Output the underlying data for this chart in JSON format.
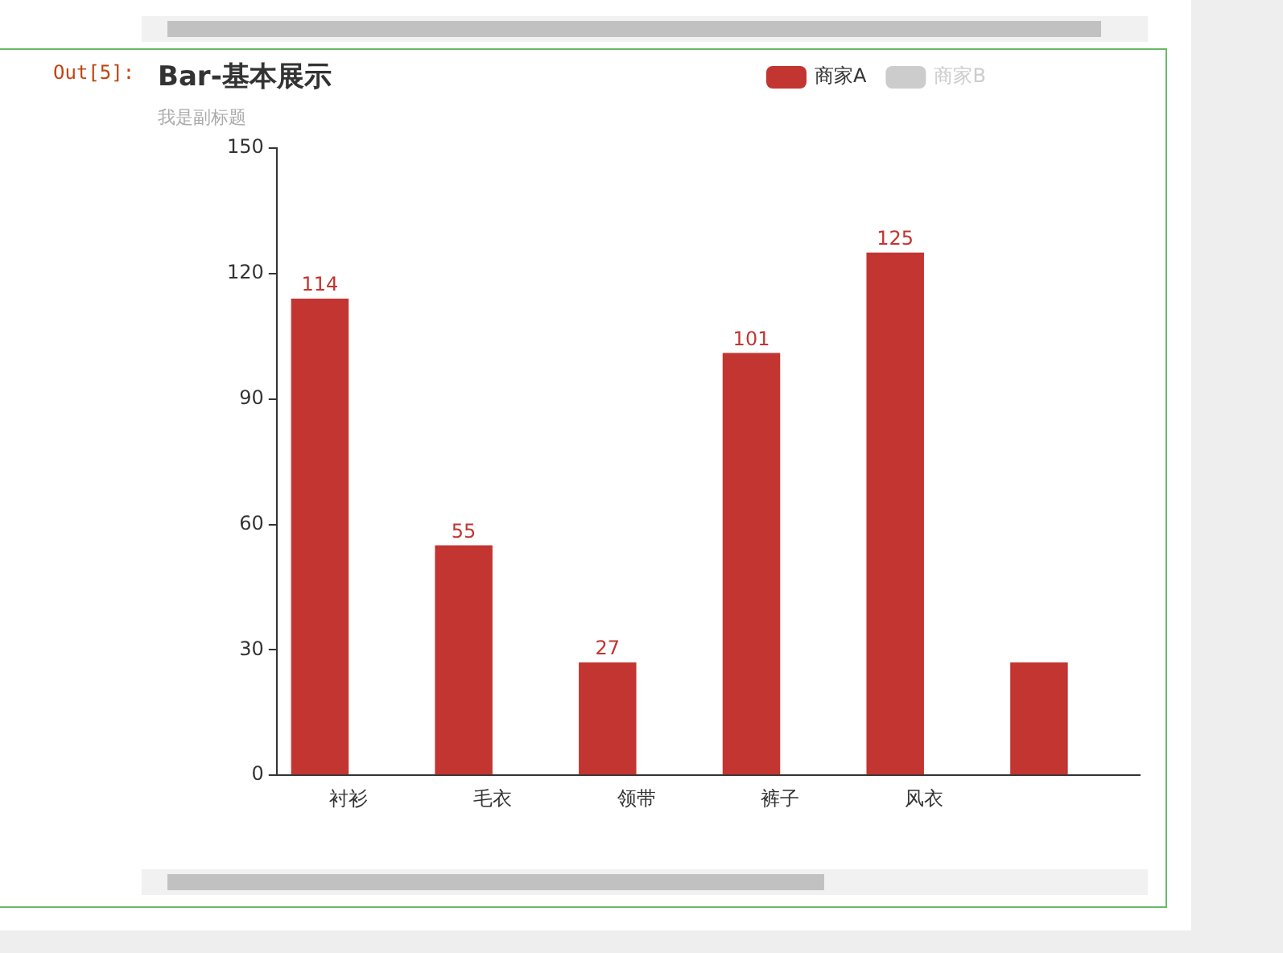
{
  "chart_data": {
    "type": "bar",
    "title": "Bar-基本展示",
    "subtitle": "我是副标题",
    "categories": [
      "衬衫",
      "毛衣",
      "领带",
      "裤子",
      "风衣",
      null
    ],
    "series": [
      {
        "name": "商家A",
        "color": "#c23531",
        "values": [
          114,
          55,
          27,
          101,
          125,
          27
        ],
        "value_labels": [
          "114",
          "55",
          "27",
          "101",
          "125",
          null
        ]
      },
      {
        "name": "商家B",
        "color": "#cccccc",
        "values": [
          null,
          null,
          null,
          null,
          null,
          null
        ]
      }
    ],
    "ylim": [
      0,
      150
    ],
    "yticks": [
      0,
      30,
      60,
      90,
      120,
      150
    ],
    "grid": false,
    "legend": "top right",
    "annotations": [
      "Out[5]:"
    ]
  }
}
